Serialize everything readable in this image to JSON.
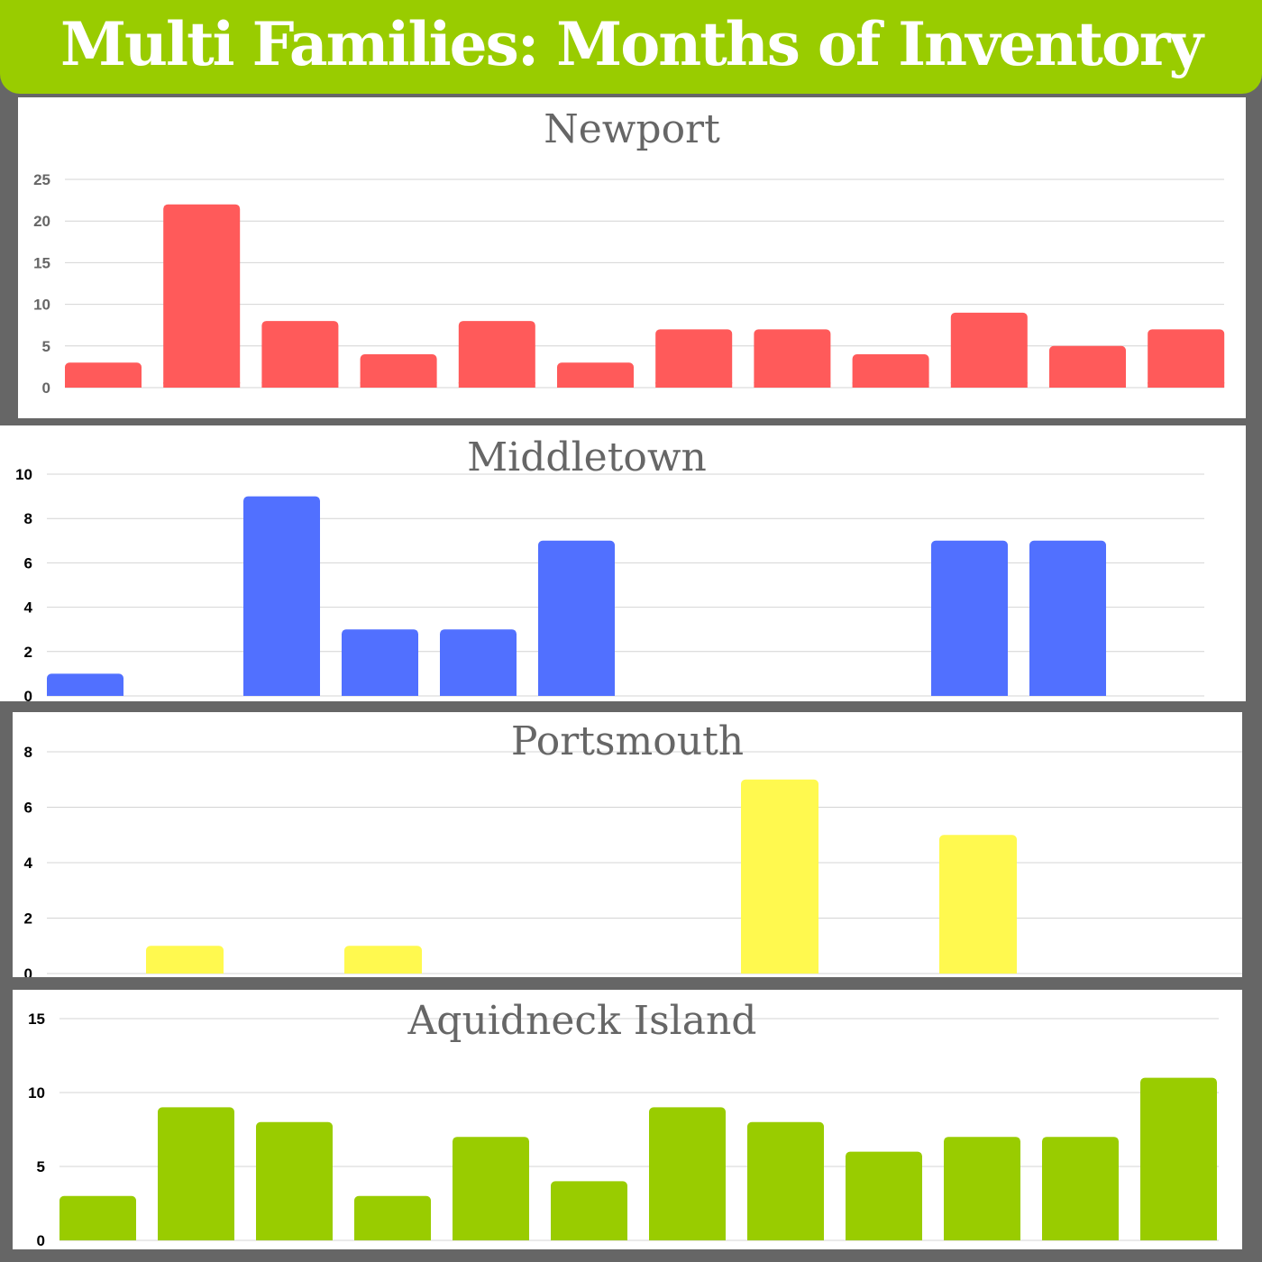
{
  "page_title": "Multi Families: Months of Inventory",
  "colors": {
    "banner": "#99cc00",
    "background": "#666666",
    "newport": "#ff5a5a",
    "middletown": "#5170ff",
    "portsmouth": "#fff94f",
    "aquidneck": "#99cc00"
  },
  "chart_data": [
    {
      "type": "bar",
      "title": "Newport",
      "xlabel": "",
      "ylabel": "",
      "ylim": [
        0,
        25
      ],
      "yticks": [
        0,
        5,
        10,
        15,
        20,
        25
      ],
      "grid": true,
      "values": [
        3,
        22,
        8,
        4,
        8,
        3,
        7,
        7,
        4,
        9,
        5,
        7
      ]
    },
    {
      "type": "bar",
      "title": "Middletown",
      "xlabel": "",
      "ylabel": "",
      "ylim": [
        0,
        10
      ],
      "yticks": [
        0,
        2,
        4,
        6,
        8,
        10
      ],
      "grid": true,
      "values": [
        1,
        0,
        9,
        3,
        3,
        7,
        0,
        0,
        0,
        7,
        7,
        0
      ]
    },
    {
      "type": "bar",
      "title": "Portsmouth",
      "xlabel": "",
      "ylabel": "",
      "ylim": [
        0,
        8
      ],
      "yticks": [
        0,
        2,
        4,
        6,
        8
      ],
      "grid": true,
      "values": [
        0,
        1,
        0,
        1,
        0,
        0,
        0,
        7,
        0,
        5,
        0,
        0
      ]
    },
    {
      "type": "bar",
      "title": "Aquidneck Island",
      "xlabel": "",
      "ylabel": "",
      "ylim": [
        0,
        15
      ],
      "yticks": [
        0,
        5,
        10,
        15
      ],
      "grid": true,
      "values": [
        3,
        9,
        8,
        3,
        7,
        4,
        9,
        8,
        6,
        7,
        7,
        11
      ]
    }
  ]
}
